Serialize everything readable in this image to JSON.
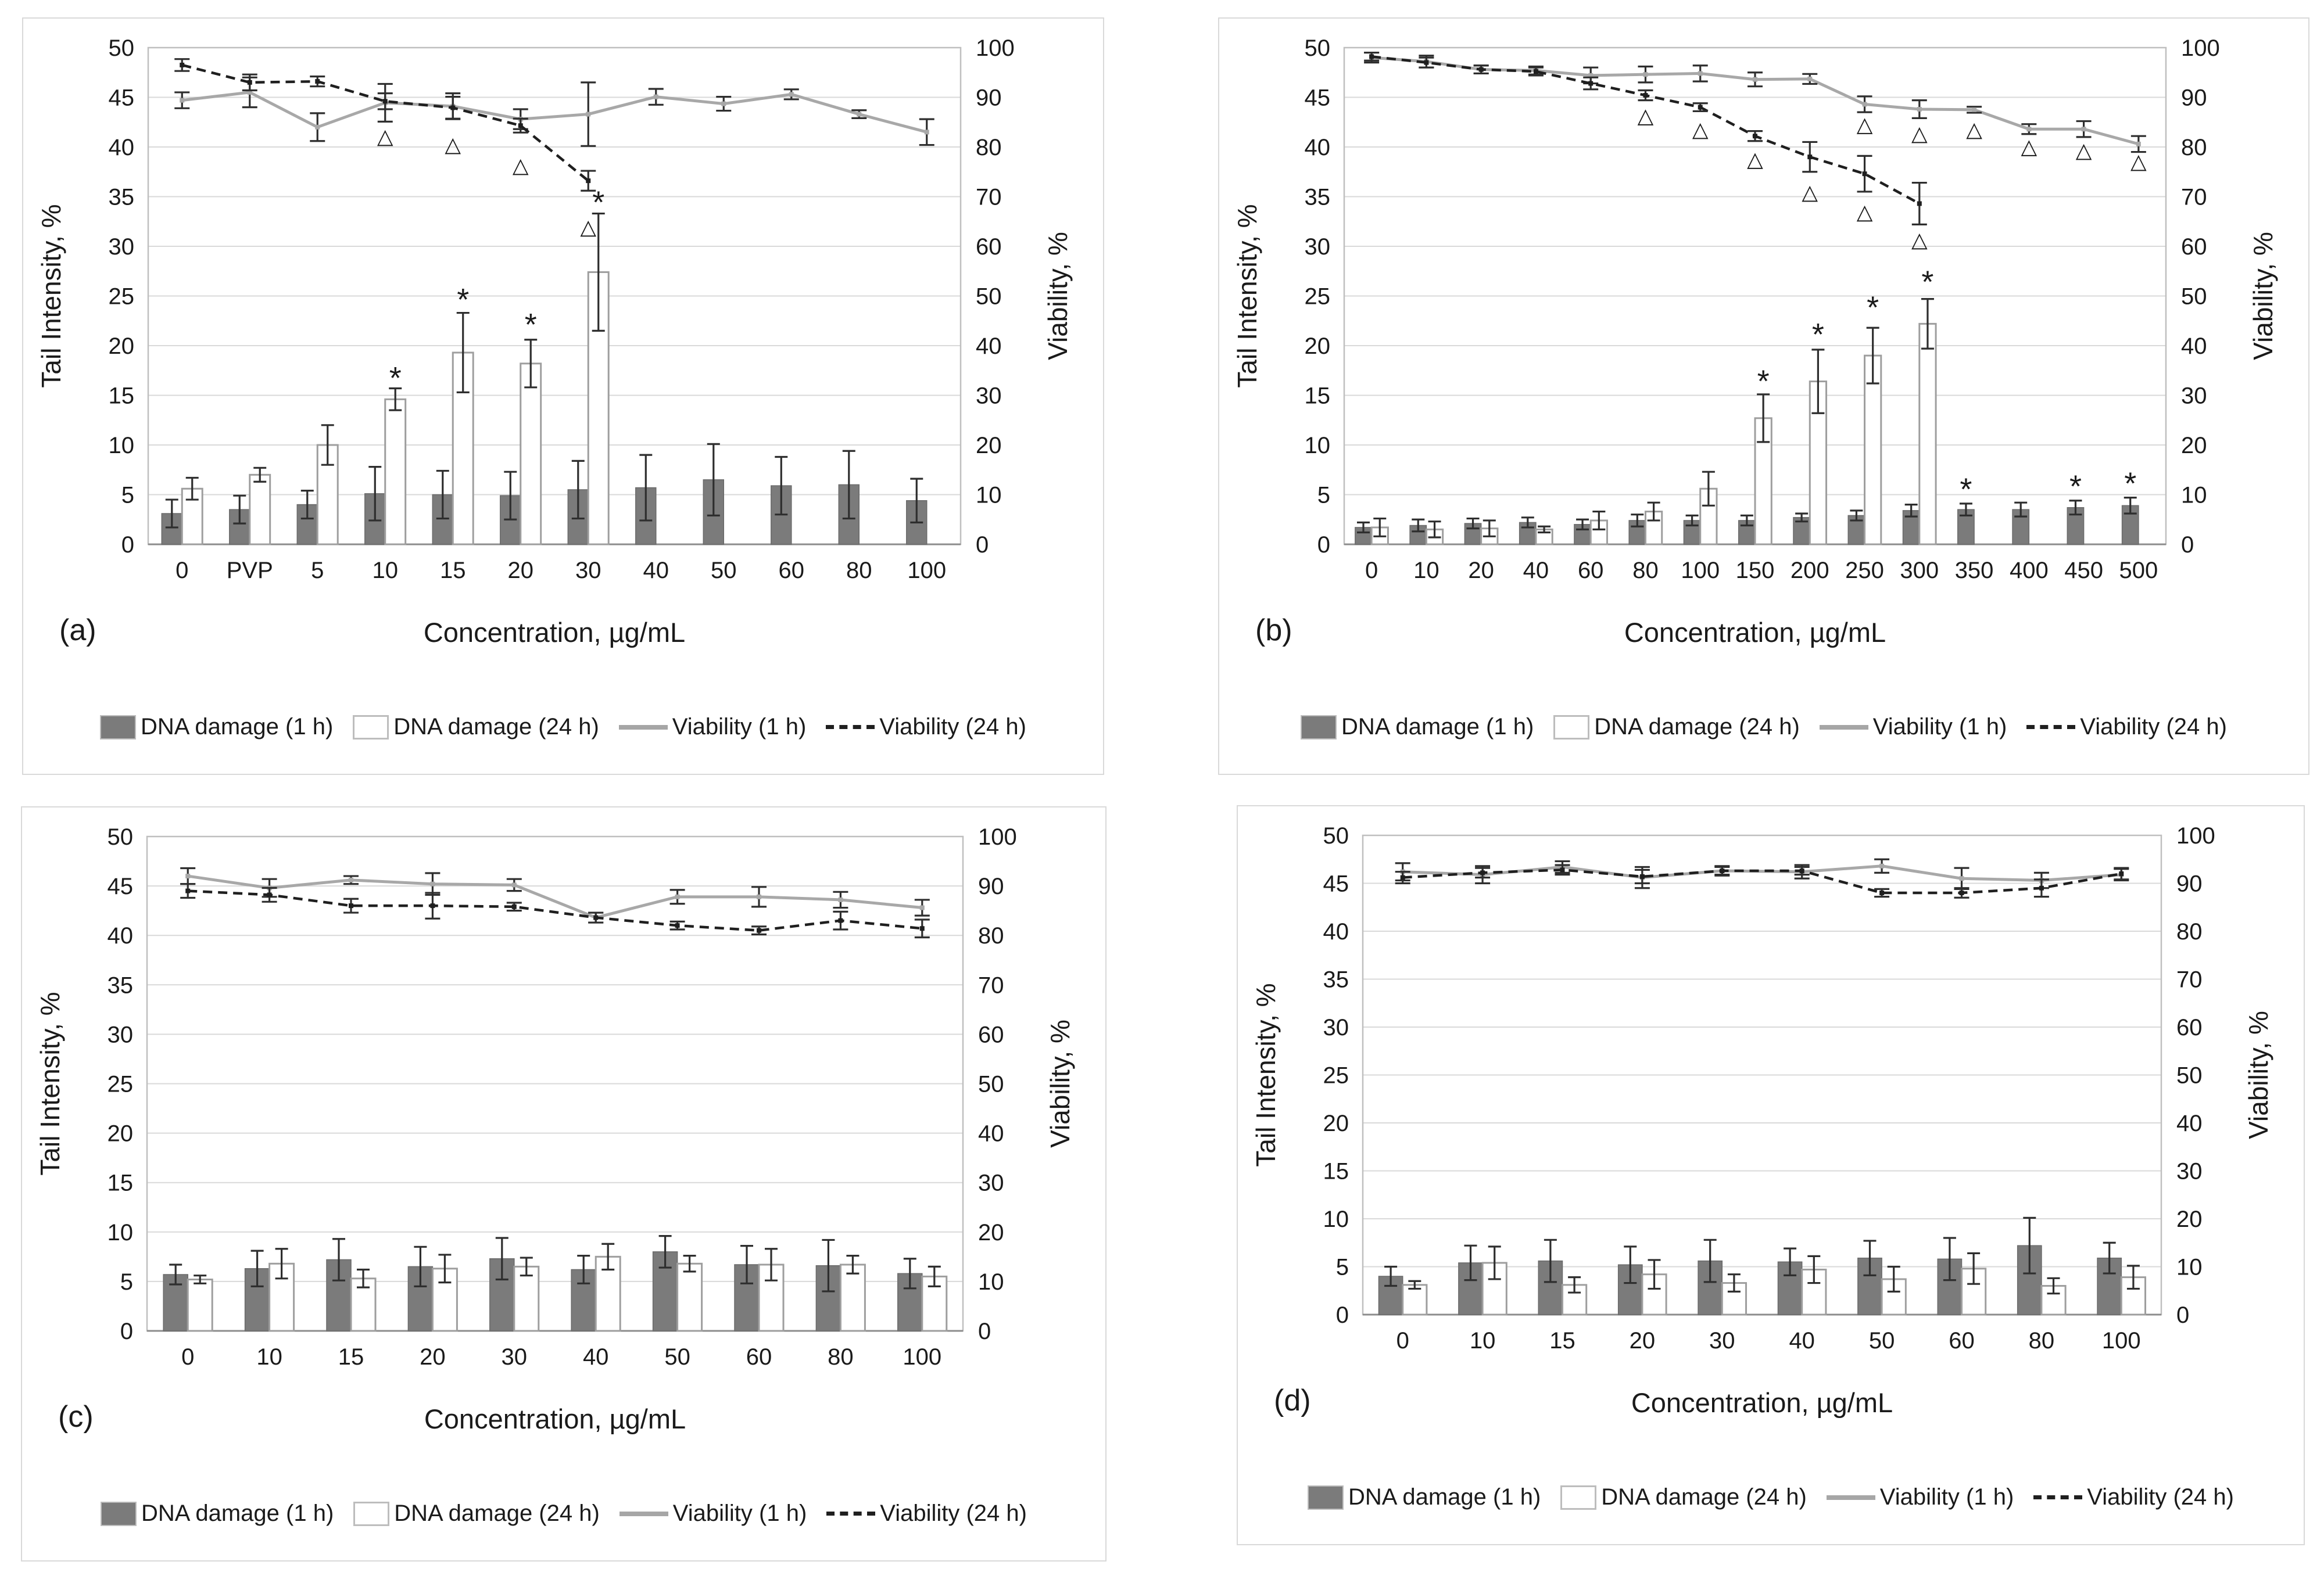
{
  "axes": {
    "x_label": "Concentration, µg/mL",
    "left_label": "Tail Intensity, %",
    "right_label": "Viability, %",
    "left_ticks": [
      0,
      5,
      10,
      15,
      20,
      25,
      30,
      35,
      40,
      45,
      50
    ],
    "right_ticks": [
      0,
      10,
      20,
      30,
      40,
      50,
      60,
      70,
      80,
      90,
      100
    ],
    "ylim_left": [
      0,
      50
    ],
    "ylim_right": [
      0,
      100
    ]
  },
  "legend": {
    "items": [
      {
        "label": "DNA damage (1 h)",
        "swatch": "bar-filled"
      },
      {
        "label": "DNA damage (24 h)",
        "swatch": "bar-open"
      },
      {
        "label": "Viability (1 h)",
        "swatch": "line-solid"
      },
      {
        "label": "Viability (24 h)",
        "swatch": "line-dashed"
      }
    ]
  },
  "colors": {
    "bar1_fill": "#7b7b7b",
    "bar1_stroke": "#6a6a6a",
    "bar2_fill": "#ffffff",
    "bar2_stroke": "#9e9e9e",
    "line1": "#a8a8a8",
    "line2": "#1f1f1f",
    "error": "#2e2e2e",
    "grid": "#d9d9d9",
    "plot_border": "#bfbfbf",
    "axis_line": "#8c8c8c",
    "annotation": "#1a1a1a"
  },
  "chart_data": [
    {
      "id": "a",
      "label": "(a)",
      "type": "bar",
      "categories": [
        "0",
        "PVP",
        "5",
        "10",
        "15",
        "20",
        "30",
        "40",
        "50",
        "60",
        "80",
        "100"
      ],
      "series": [
        {
          "name": "DNA damage (1 h)",
          "type": "bar",
          "axis": "left",
          "values": [
            3.1,
            3.5,
            4.0,
            5.1,
            5.0,
            4.9,
            5.5,
            5.7,
            6.5,
            5.9,
            6.0,
            4.4
          ],
          "errors": [
            1.4,
            1.4,
            1.4,
            2.7,
            2.4,
            2.4,
            2.9,
            3.3,
            3.6,
            2.9,
            3.4,
            2.2
          ]
        },
        {
          "name": "DNA damage (24 h)",
          "type": "bar",
          "axis": "left",
          "values": [
            5.6,
            7.0,
            10.0,
            14.6,
            19.3,
            18.2,
            27.4,
            null,
            null,
            null,
            null,
            null
          ],
          "errors": [
            1.1,
            0.7,
            2.0,
            1.1,
            4.0,
            2.4,
            5.9,
            null,
            null,
            null,
            null,
            null
          ]
        },
        {
          "name": "Viability (1 h)",
          "type": "line",
          "style": "solid",
          "axis": "right",
          "values": [
            89.4,
            91.0,
            84.0,
            88.9,
            88.2,
            85.6,
            86.6,
            90.1,
            88.7,
            90.6,
            86.6,
            83.0
          ],
          "errors": [
            1.6,
            3.0,
            2.8,
            3.8,
            2.6,
            2.0,
            6.4,
            1.6,
            1.4,
            1.0,
            0.8,
            2.6
          ]
        },
        {
          "name": "Viability (24 h)",
          "type": "line",
          "style": "dashed",
          "axis": "right",
          "values": [
            96.5,
            93.0,
            93.2,
            89.2,
            87.9,
            84.3,
            73.2,
            null,
            null,
            null,
            null,
            null
          ],
          "errors": [
            1.2,
            1.6,
            1.0,
            1.6,
            2.2,
            1.4,
            2.0,
            null,
            null,
            null,
            null,
            null
          ]
        }
      ],
      "annotations": {
        "asterisks": [
          {
            "cat_index": 3,
            "y_left": 16.6,
            "series": 1
          },
          {
            "cat_index": 4,
            "y_left": 24.5,
            "series": 1
          },
          {
            "cat_index": 5,
            "y_left": 22.0,
            "series": 1
          },
          {
            "cat_index": 6,
            "y_left": 34.3,
            "series": 1
          }
        ],
        "triangles": [
          {
            "cat_index": 3,
            "y_right": 82.2
          },
          {
            "cat_index": 4,
            "y_right": 80.6
          },
          {
            "cat_index": 5,
            "y_right": 76.4
          },
          {
            "cat_index": 6,
            "y_right": 64.0
          }
        ]
      }
    },
    {
      "id": "b",
      "label": "(b)",
      "type": "bar",
      "categories": [
        "0",
        "10",
        "20",
        "40",
        "60",
        "80",
        "100",
        "150",
        "200",
        "250",
        "300",
        "350",
        "400",
        "450",
        "500"
      ],
      "series": [
        {
          "name": "DNA damage (1 h)",
          "type": "bar",
          "axis": "left",
          "values": [
            1.7,
            1.9,
            2.1,
            2.2,
            2.0,
            2.4,
            2.4,
            2.4,
            2.7,
            2.9,
            3.4,
            3.5,
            3.5,
            3.7,
            3.9
          ],
          "errors": [
            0.5,
            0.6,
            0.5,
            0.5,
            0.5,
            0.6,
            0.5,
            0.5,
            0.4,
            0.5,
            0.6,
            0.6,
            0.7,
            0.7,
            0.8
          ]
        },
        {
          "name": "DNA damage (24 h)",
          "type": "bar",
          "axis": "left",
          "values": [
            1.7,
            1.5,
            1.6,
            1.5,
            2.4,
            3.3,
            5.6,
            12.7,
            16.4,
            19.0,
            22.2,
            null,
            null,
            null,
            null
          ],
          "errors": [
            0.9,
            0.8,
            0.8,
            0.3,
            0.9,
            0.9,
            1.7,
            2.4,
            3.2,
            2.8,
            2.5,
            null,
            null,
            null,
            null
          ]
        },
        {
          "name": "Viability (1 h)",
          "type": "line",
          "style": "solid",
          "axis": "right",
          "values": [
            98.0,
            97.2,
            95.6,
            95.4,
            94.4,
            94.6,
            94.8,
            93.6,
            93.7,
            88.6,
            87.6,
            87.5,
            83.6,
            83.6,
            80.6
          ],
          "errors": [
            1.0,
            1.2,
            0.8,
            0.8,
            1.6,
            1.6,
            1.6,
            1.4,
            1.0,
            1.6,
            1.8,
            0.6,
            1.0,
            1.6,
            1.6
          ]
        },
        {
          "name": "Viability (24 h)",
          "type": "line",
          "style": "dashed",
          "axis": "right",
          "values": [
            98.2,
            97.0,
            95.6,
            95.2,
            92.8,
            90.4,
            88.0,
            82.2,
            78.0,
            74.6,
            68.6,
            null,
            null,
            null,
            null
          ],
          "errors": [
            0.8,
            1.0,
            0.8,
            0.8,
            1.2,
            1.0,
            0.8,
            1.0,
            3.0,
            3.6,
            4.2,
            null,
            null,
            null,
            null
          ]
        }
      ],
      "annotations": {
        "asterisks": [
          {
            "cat_index": 7,
            "y_left": 16.3,
            "series": 1
          },
          {
            "cat_index": 8,
            "y_left": 21.0,
            "series": 1
          },
          {
            "cat_index": 9,
            "y_left": 23.7,
            "series": 1
          },
          {
            "cat_index": 10,
            "y_left": 26.3,
            "series": 1
          },
          {
            "cat_index": 11,
            "y_left": 5.4,
            "series": 0
          },
          {
            "cat_index": 13,
            "y_left": 5.7,
            "series": 0
          },
          {
            "cat_index": 14,
            "y_left": 6.0,
            "series": 0
          }
        ],
        "triangles": [
          {
            "cat_index": 5,
            "y_right": 86.4
          },
          {
            "cat_index": 6,
            "y_right": 83.6
          },
          {
            "cat_index": 7,
            "y_right": 77.6
          },
          {
            "cat_index": 8,
            "y_right": 71.0
          },
          {
            "cat_index": 9,
            "y_right": 67.0
          },
          {
            "cat_index": 10,
            "y_right": 61.4
          },
          {
            "cat_index": 9,
            "y_right": 84.6
          },
          {
            "cat_index": 10,
            "y_right": 82.8
          },
          {
            "cat_index": 11,
            "y_right": 83.6
          },
          {
            "cat_index": 12,
            "y_right": 80.2
          },
          {
            "cat_index": 13,
            "y_right": 79.4
          },
          {
            "cat_index": 14,
            "y_right": 77.2
          }
        ]
      }
    },
    {
      "id": "c",
      "label": "(c)",
      "type": "bar",
      "categories": [
        "0",
        "10",
        "15",
        "20",
        "30",
        "40",
        "50",
        "60",
        "80",
        "100"
      ],
      "series": [
        {
          "name": "DNA damage (1 h)",
          "type": "bar",
          "axis": "left",
          "values": [
            5.7,
            6.3,
            7.2,
            6.5,
            7.3,
            6.2,
            8.0,
            6.7,
            6.6,
            5.8
          ],
          "errors": [
            1.0,
            1.8,
            2.1,
            2.0,
            2.1,
            1.4,
            1.6,
            1.9,
            2.6,
            1.5
          ]
        },
        {
          "name": "DNA damage (24 h)",
          "type": "bar",
          "axis": "left",
          "values": [
            5.2,
            6.8,
            5.3,
            6.3,
            6.5,
            7.5,
            6.8,
            6.7,
            6.7,
            5.5
          ],
          "errors": [
            0.4,
            1.5,
            0.9,
            1.4,
            0.9,
            1.3,
            0.8,
            1.6,
            0.9,
            1.0
          ]
        },
        {
          "name": "Viability (1 h)",
          "type": "line",
          "style": "solid",
          "axis": "right",
          "values": [
            92.0,
            89.6,
            91.2,
            90.4,
            90.2,
            83.6,
            87.8,
            87.8,
            87.2,
            85.6
          ],
          "errors": [
            1.6,
            1.8,
            0.8,
            2.2,
            1.2,
            1.0,
            1.4,
            2.0,
            1.6,
            1.6
          ]
        },
        {
          "name": "Viability (24 h)",
          "type": "line",
          "style": "dashed",
          "axis": "right",
          "values": [
            89.0,
            88.2,
            86.0,
            86.0,
            85.8,
            83.6,
            82.0,
            81.0,
            83.0,
            81.4
          ],
          "errors": [
            1.4,
            1.4,
            1.4,
            2.6,
            0.8,
            1.0,
            0.8,
            0.8,
            1.8,
            1.8
          ]
        }
      ],
      "annotations": {
        "asterisks": [],
        "triangles": []
      }
    },
    {
      "id": "d",
      "label": "(d)",
      "type": "bar",
      "categories": [
        "0",
        "10",
        "15",
        "20",
        "30",
        "40",
        "50",
        "60",
        "80",
        "100"
      ],
      "series": [
        {
          "name": "DNA damage (1 h)",
          "type": "bar",
          "axis": "left",
          "values": [
            4.0,
            5.4,
            5.6,
            5.2,
            5.6,
            5.5,
            5.9,
            5.8,
            7.2,
            5.9
          ],
          "errors": [
            1.0,
            1.8,
            2.2,
            1.9,
            2.2,
            1.4,
            1.8,
            2.2,
            2.9,
            1.6
          ]
        },
        {
          "name": "DNA damage (24 h)",
          "type": "bar",
          "axis": "left",
          "values": [
            3.1,
            5.4,
            3.1,
            4.2,
            3.3,
            4.7,
            3.7,
            4.8,
            3.0,
            3.9
          ],
          "errors": [
            0.4,
            1.7,
            0.8,
            1.5,
            0.9,
            1.4,
            1.3,
            1.6,
            0.8,
            1.2
          ]
        },
        {
          "name": "Viability (1 h)",
          "type": "line",
          "style": "solid",
          "axis": "right",
          "values": [
            92.4,
            91.8,
            93.4,
            91.2,
            92.6,
            92.4,
            93.6,
            91.0,
            90.6,
            91.8
          ],
          "errors": [
            1.8,
            1.8,
            1.2,
            2.2,
            1.0,
            1.4,
            1.4,
            2.2,
            1.6,
            1.2
          ]
        },
        {
          "name": "Viability (24 h)",
          "type": "line",
          "style": "dashed",
          "axis": "right",
          "values": [
            91.2,
            92.2,
            92.8,
            91.4,
            92.6,
            92.6,
            88.0,
            88.0,
            89.0,
            92.0
          ],
          "errors": [
            1.2,
            1.0,
            1.0,
            1.4,
            0.8,
            0.8,
            0.8,
            1.0,
            1.8,
            1.2
          ]
        }
      ],
      "annotations": {
        "asterisks": [],
        "triangles": []
      }
    }
  ]
}
